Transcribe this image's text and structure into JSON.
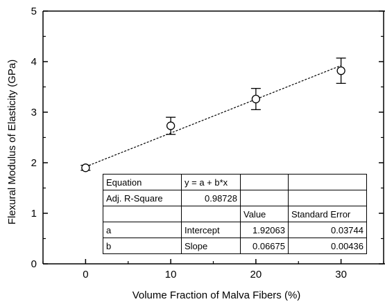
{
  "chart_data": {
    "type": "scatter",
    "xlabel": "Volume Fraction of Malva Fibers (%)",
    "ylabel": "Flexural Modulus of Elasticity (GPa)",
    "xlim": [
      -5,
      35
    ],
    "ylim": [
      0,
      5
    ],
    "xticks": [
      "0",
      "10",
      "20",
      "30"
    ],
    "yticks": [
      "0",
      "1",
      "2",
      "3",
      "4",
      "5"
    ],
    "points": [
      {
        "x": 0,
        "y": 1.9,
        "err": 0.05
      },
      {
        "x": 10,
        "y": 2.73,
        "err": 0.17
      },
      {
        "x": 20,
        "y": 3.26,
        "err": 0.21
      },
      {
        "x": 30,
        "y": 3.82,
        "err": 0.25
      }
    ],
    "fit": {
      "a": 1.92063,
      "b": 0.06675,
      "x_range": [
        0,
        30
      ],
      "style": "dashed"
    },
    "grid": false
  },
  "table": {
    "equation_label": "Equation",
    "equation_value": "y = a + b*x",
    "r2_label": "Adj. R-Square",
    "r2_value": "0.98728",
    "value_header": "Value",
    "se_header": "Standard Error",
    "row_a": {
      "param": "a",
      "name": "Intercept",
      "value": "1.92063",
      "se": "0.03744"
    },
    "row_b": {
      "param": "b",
      "name": "Slope",
      "value": "0.06675",
      "se": "0.00436"
    }
  }
}
